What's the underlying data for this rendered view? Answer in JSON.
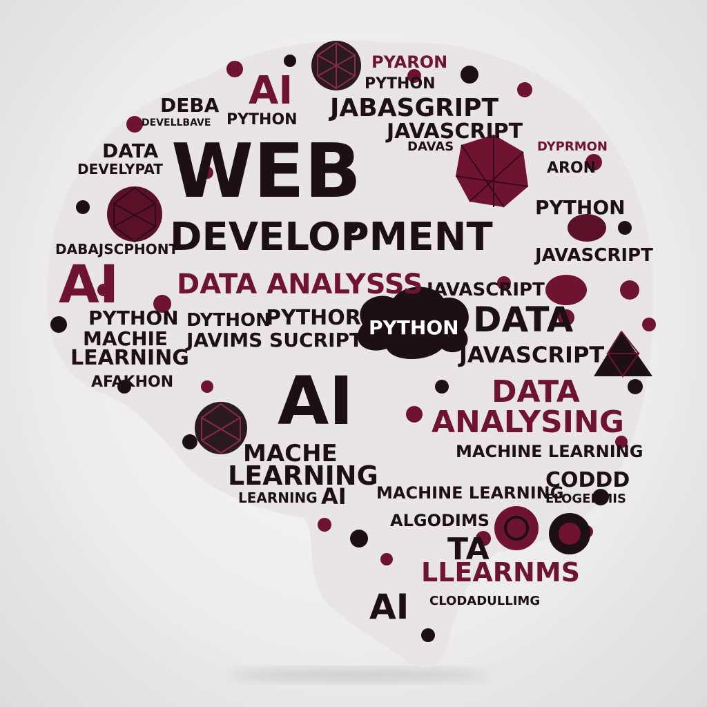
{
  "words": {
    "w01": "PYARON",
    "w02": "AI",
    "w03": "PYTHON",
    "w04": "DEBA",
    "w05": "DEVELLBAVE",
    "w06": "PYTHON",
    "w07": "JABASGRIPT",
    "w08": "JAVASCRIPT",
    "w09": "DATA",
    "w10": "DEVELYPAT",
    "w11": "WEB",
    "w12": "DEVELOPMENT",
    "w13": "PYTHON",
    "w14": "JAVASCRIPT",
    "w15": "DABAJSCPHONT",
    "w16": "AI",
    "w17": "DATA ANALYSSS",
    "w18": "JAVASCRIPT",
    "w19": "PYTHON",
    "w20": "DYTHON",
    "w21": "PYTHOR",
    "w22": "PYTHON",
    "w23": "DATA",
    "w24": "MACHIE",
    "w25": "JAVIMS SUCRIPT",
    "w26": "LEARNING",
    "w27": "JAVASCRIPT",
    "w28": "AFAKHON",
    "w29": "AI",
    "w30": "DATA",
    "w31": "ANALYSING",
    "w32": "MACHE",
    "w33": "MACHINE LEARNING",
    "w34": "LEARNING",
    "w35": "CODDD",
    "w36": "LEARNING",
    "w37": "AI",
    "w38": "MACHINE LEARNING",
    "w39": "ELOGERMIS",
    "w40": "ALGODIMS",
    "w41": "TA",
    "w42": "LLEARNMS",
    "w43": "AI",
    "w44": "CLODADULLIMG",
    "w45": "DYPRMON",
    "w46": "ARON",
    "w47": "DAVAS"
  },
  "colors": {
    "ink": "#1c1014",
    "maroon": "#6e1430",
    "wine": "#5a1026",
    "background": "#efefef"
  }
}
